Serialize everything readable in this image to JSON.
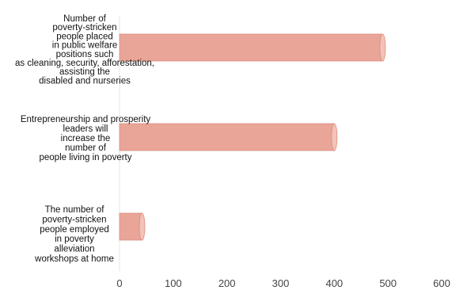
{
  "chart_data": {
    "type": "bar",
    "orientation": "horizontal",
    "title": "",
    "xlabel": "",
    "ylabel": "",
    "categories": [
      [
        "Number of",
        "poverty-stricken",
        "people placed",
        "in public welfare",
        "positions such",
        "as cleaning, security, afforestation,",
        "assisting the",
        "disabled and nurseries"
      ],
      [
        "Entrepreneurship and prosperity",
        "leaders will",
        "increase the",
        "number of",
        "people living in poverty"
      ],
      [
        "The number of",
        "poverty-stricken",
        "people employed",
        "in poverty",
        "alleviation",
        "workshops at home"
      ]
    ],
    "values": [
      490,
      400,
      42
    ],
    "xlim": [
      0,
      600
    ],
    "xticks": [
      "0",
      "100",
      "200",
      "300",
      "400",
      "500",
      "600"
    ],
    "grid": false,
    "legend": "none",
    "colors": {
      "bar_fill": "#e9a597",
      "bar_end": "#f3c3b7",
      "bar_stroke": "#d98e80",
      "axis": "#e6e6e6"
    }
  }
}
